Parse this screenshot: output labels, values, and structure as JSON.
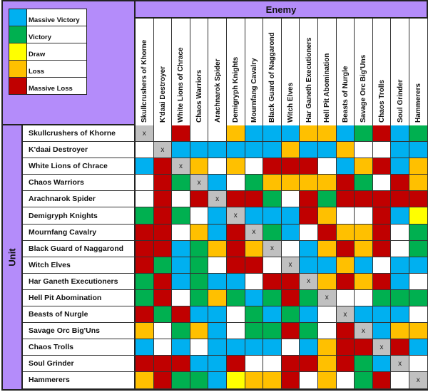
{
  "legend": [
    {
      "key": "MV",
      "label": "Massive Victory",
      "color": "#00b0f0"
    },
    {
      "key": "V",
      "label": "Victory",
      "color": "#00b050"
    },
    {
      "key": "D",
      "label": "Draw",
      "color": "#ffff00"
    },
    {
      "key": "L",
      "label": "Loss",
      "color": "#ffc000"
    },
    {
      "key": "ML",
      "label": "Massive Loss",
      "color": "#c00000"
    }
  ],
  "colors": {
    "W": "#ffffff",
    "X": "#c0c0c0",
    "header_bg": "#b48cfa"
  },
  "enemy_label": "Enemy",
  "unit_label": "Unit",
  "self_marker": "x",
  "units": [
    "Skullcrushers of Khorne",
    "K'daai Destroyer",
    "White Lions of Chrace",
    "Chaos Warriors",
    "Arachnarok Spider",
    "Demigryph Knights",
    "Mournfang Cavalry",
    "Black Guard of Naggarond",
    "Witch Elves",
    "Har Ganeth Executioners",
    "Hell Pit Abomination",
    "Beasts of Nurgle",
    "Savage Orc Big'Uns",
    "Chaos Trolls",
    "Soul Grinder",
    "Hammerers"
  ],
  "matrix": [
    [
      "X",
      "W",
      "ML",
      "W",
      "W",
      "L",
      "MV",
      "MV",
      "MV",
      "L",
      "L",
      "MV",
      "V",
      "ML",
      "MV",
      "V"
    ],
    [
      "W",
      "X",
      "MV",
      "MV",
      "MV",
      "MV",
      "MV",
      "MV",
      "L",
      "MV",
      "MV",
      "L",
      "W",
      "W",
      "MV",
      "MV"
    ],
    [
      "MV",
      "ML",
      "X",
      "L",
      "W",
      "L",
      "W",
      "ML",
      "ML",
      "ML",
      "W",
      "MV",
      "L",
      "ML",
      "MV",
      "L"
    ],
    [
      "W",
      "ML",
      "V",
      "X",
      "MV",
      "W",
      "V",
      "L",
      "L",
      "L",
      "L",
      "ML",
      "V",
      "W",
      "ML",
      "L"
    ],
    [
      "W",
      "ML",
      "W",
      "ML",
      "X",
      "ML",
      "ML",
      "V",
      "W",
      "ML",
      "V",
      "ML",
      "ML",
      "ML",
      "ML",
      "ML"
    ],
    [
      "V",
      "ML",
      "V",
      "W",
      "MV",
      "X",
      "MV",
      "MV",
      "MV",
      "ML",
      "L",
      "W",
      "W",
      "ML",
      "MV",
      "D"
    ],
    [
      "ML",
      "ML",
      "W",
      "L",
      "MV",
      "ML",
      "X",
      "V",
      "MV",
      "W",
      "ML",
      "L",
      "L",
      "ML",
      "W",
      "V"
    ],
    [
      "ML",
      "ML",
      "MV",
      "V",
      "L",
      "ML",
      "L",
      "X",
      "W",
      "MV",
      "L",
      "ML",
      "L",
      "ML",
      "W",
      "V"
    ],
    [
      "ML",
      "V",
      "MV",
      "V",
      "W",
      "ML",
      "ML",
      "W",
      "X",
      "MV",
      "MV",
      "L",
      "MV",
      "W",
      "MV",
      "MV"
    ],
    [
      "V",
      "ML",
      "MV",
      "V",
      "MV",
      "MV",
      "W",
      "ML",
      "ML",
      "X",
      "L",
      "ML",
      "L",
      "ML",
      "MV",
      "W"
    ],
    [
      "V",
      "ML",
      "W",
      "V",
      "L",
      "V",
      "MV",
      "V",
      "ML",
      "V",
      "X",
      "W",
      "W",
      "V",
      "V",
      "V"
    ],
    [
      "ML",
      "V",
      "ML",
      "MV",
      "MV",
      "W",
      "V",
      "MV",
      "V",
      "MV",
      "W",
      "X",
      "MV",
      "MV",
      "MV",
      "W"
    ],
    [
      "L",
      "W",
      "V",
      "L",
      "MV",
      "W",
      "V",
      "V",
      "ML",
      "V",
      "W",
      "ML",
      "X",
      "MV",
      "L",
      "L"
    ],
    [
      "MV",
      "W",
      "MV",
      "W",
      "MV",
      "MV",
      "MV",
      "MV",
      "W",
      "MV",
      "L",
      "ML",
      "ML",
      "X",
      "ML",
      "MV"
    ],
    [
      "ML",
      "ML",
      "ML",
      "MV",
      "MV",
      "ML",
      "W",
      "W",
      "ML",
      "ML",
      "L",
      "ML",
      "V",
      "MV",
      "X",
      "W"
    ],
    [
      "L",
      "ML",
      "V",
      "V",
      "MV",
      "D",
      "L",
      "L",
      "ML",
      "W",
      "L",
      "W",
      "V",
      "ML",
      "W",
      "X"
    ]
  ]
}
